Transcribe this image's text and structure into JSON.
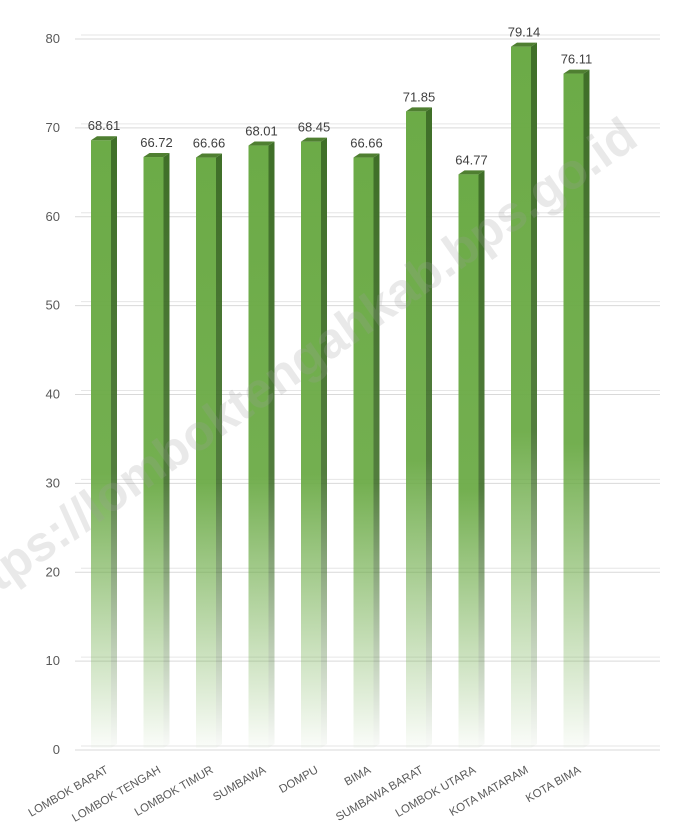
{
  "chart_data": {
    "type": "bar",
    "categories": [
      "LOMBOK BARAT",
      "LOMBOK TENGAH",
      "LOMBOK TIMUR",
      "SUMBAWA",
      "DOMPU",
      "BIMA",
      "SUMBAWA BARAT",
      "LOMBOK UTARA",
      "KOTA MATARAM",
      "KOTA BIMA"
    ],
    "values": [
      68.61,
      66.72,
      66.66,
      68.01,
      68.45,
      66.66,
      71.85,
      64.77,
      79.14,
      76.11
    ],
    "value_labels": [
      "68.61",
      "66.72",
      "66.66",
      "68.01",
      "68.45",
      "66.66",
      "71.85",
      "64.77",
      "79.14",
      "76.11"
    ],
    "ylim": [
      0,
      80
    ],
    "yticks": [
      "0",
      "10",
      "20",
      "30",
      "40",
      "50",
      "60",
      "70",
      "80"
    ],
    "grid": true,
    "bar_color": "#6aa84f",
    "bar_side_color": "#3f6f28",
    "bar_top_color": "#548235",
    "title": "",
    "xlabel": "",
    "ylabel": ""
  },
  "watermark": "https://lomboktengahkab.bps.go.id"
}
